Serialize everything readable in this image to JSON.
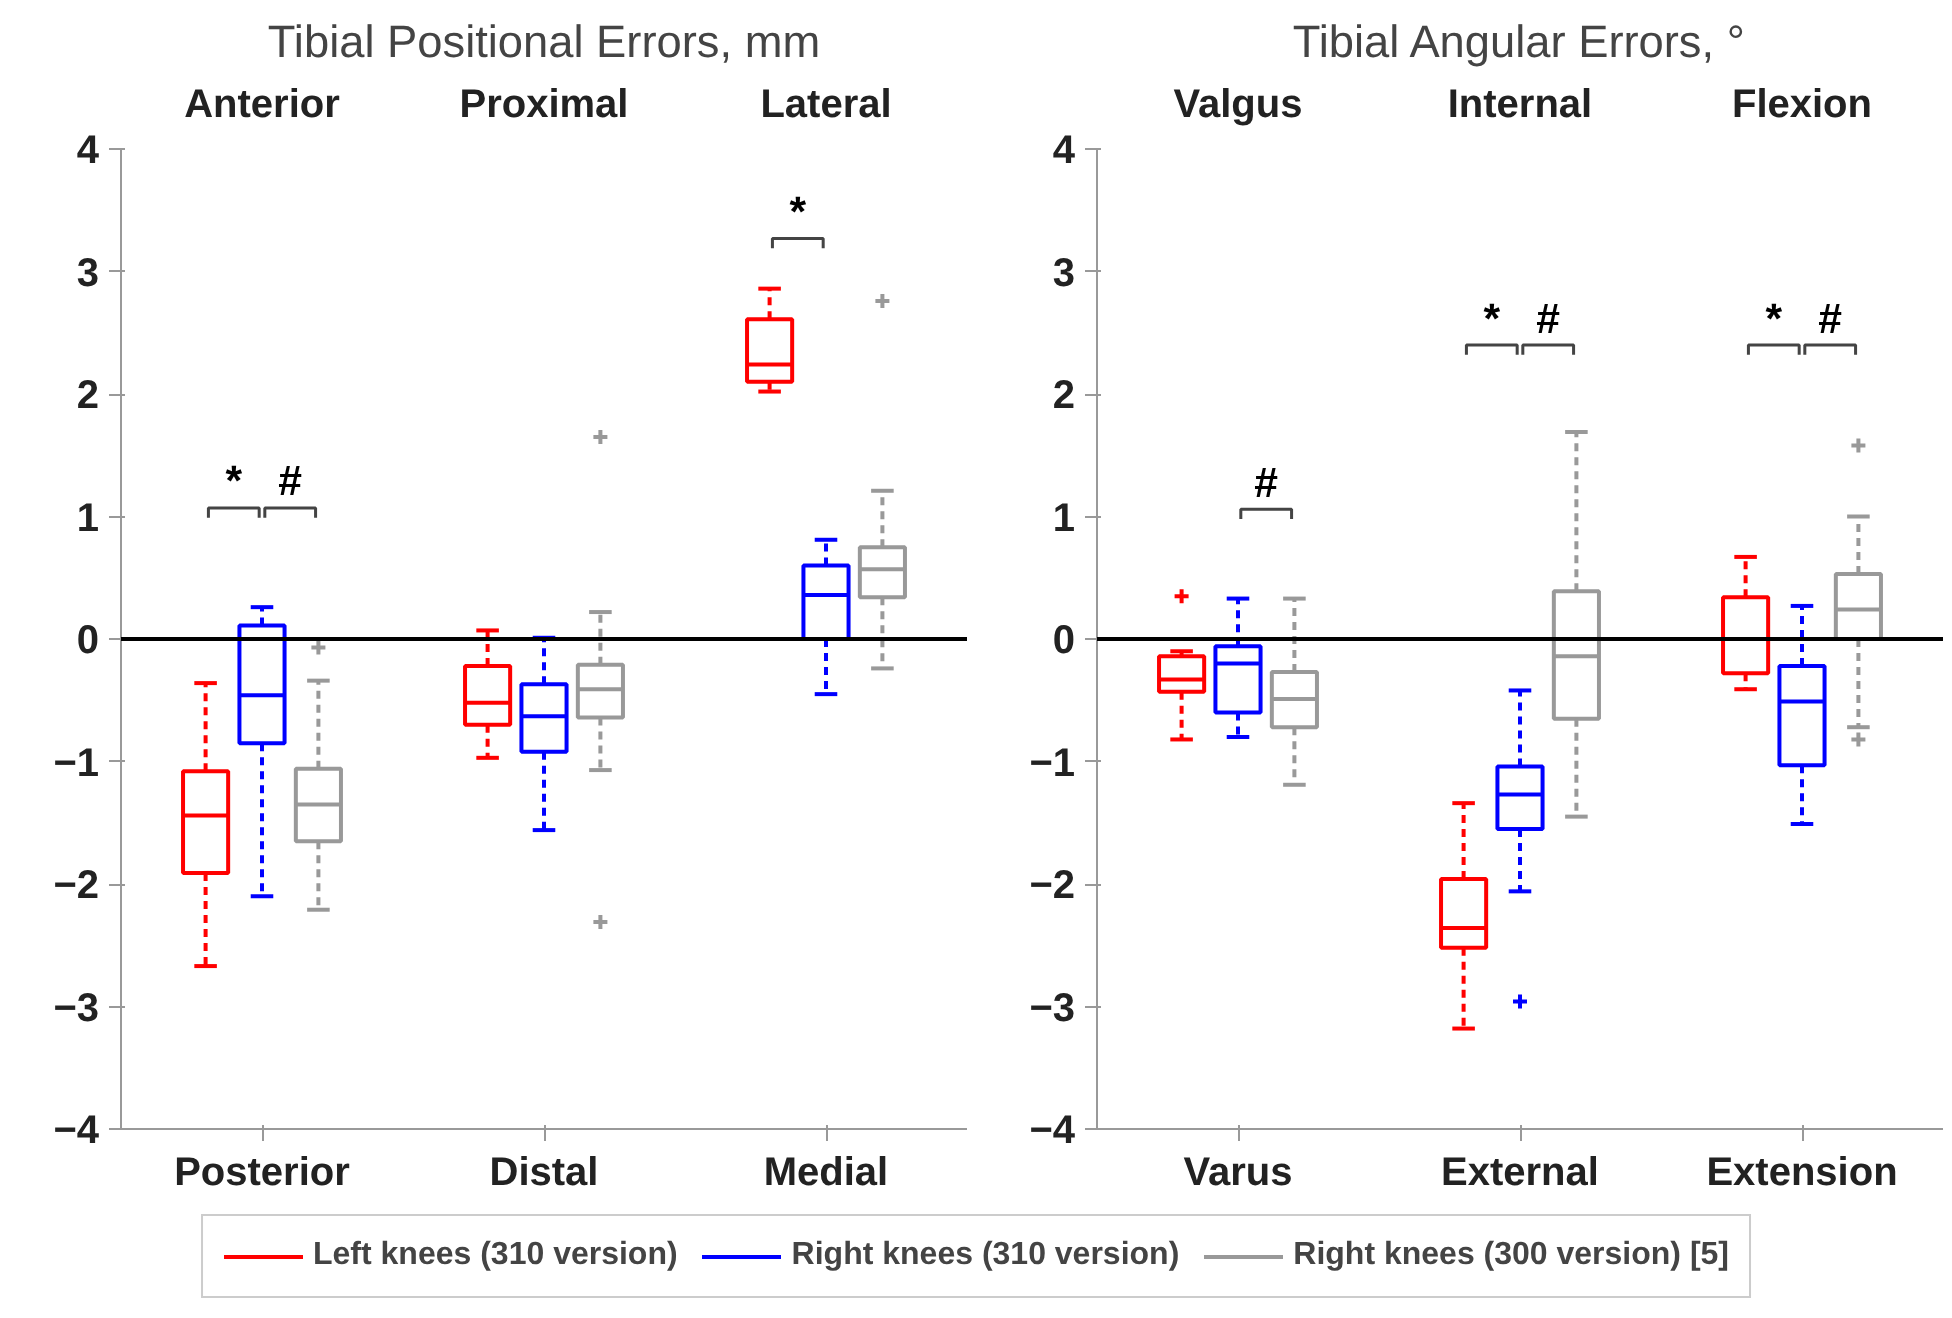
{
  "chart_data": [
    {
      "type": "box",
      "title": "Tibial Positional Errors, mm",
      "categories": [
        "Posterior",
        "Distal",
        "Medial"
      ],
      "ylim": [
        -4,
        4
      ],
      "yticks": [
        -4,
        -3,
        -2,
        -1,
        0,
        1,
        2,
        3,
        4
      ],
      "grid": false,
      "marker": "cross",
      "line_style": "dashed",
      "ref_lines": [
        {
          "axis": "y",
          "value": 0,
          "color": "#000000"
        }
      ],
      "annotations": [
        "Anterior",
        "Proximal",
        "Lateral",
        "*",
        "#",
        "*"
      ],
      "series": [
        {
          "color": "#ff0000",
          "boxes": [
            {
              "low": -2.67,
              "q1": -1.91,
              "median": -1.44,
              "q3": -1.08,
              "high": -0.36
            },
            {
              "low": -0.97,
              "q1": -0.7,
              "median": -0.52,
              "q3": -0.22,
              "high": 0.07
            },
            {
              "low": 2.02,
              "q1": 2.1,
              "median": 2.24,
              "q3": 2.61,
              "high": 2.86
            }
          ]
        },
        {
          "color": "#0000ff",
          "boxes": [
            {
              "low": -2.1,
              "q1": -0.85,
              "median": -0.46,
              "q3": 0.11,
              "high": 0.26
            },
            {
              "low": -1.56,
              "q1": -0.92,
              "median": -0.63,
              "q3": -0.37,
              "high": 0.01
            },
            {
              "low": -0.45,
              "q1": 0.0,
              "median": 0.36,
              "q3": 0.6,
              "high": 0.81
            }
          ]
        },
        {
          "color": "#999999",
          "boxes": [
            {
              "low": -2.21,
              "q1": -1.65,
              "median": -1.35,
              "q3": -1.06,
              "high": -0.34,
              "outliers": [
                -0.07
              ]
            },
            {
              "low": -1.07,
              "q1": -0.64,
              "median": -0.41,
              "q3": -0.21,
              "high": 0.22,
              "outliers": [
                1.65,
                -2.31
              ]
            },
            {
              "low": -0.24,
              "q1": 0.34,
              "median": 0.57,
              "q3": 0.75,
              "high": 1.21,
              "outliers": [
                2.76
              ]
            }
          ]
        }
      ]
    },
    {
      "type": "box",
      "title": "Tibial Angular Errors, °",
      "categories": [
        "Varus",
        "External",
        "Extension"
      ],
      "ylim": [
        -4,
        4
      ],
      "yticks": [
        -4,
        -3,
        -2,
        -1,
        0,
        1,
        2,
        3,
        4
      ],
      "grid": false,
      "marker": "cross",
      "line_style": "dashed",
      "legend": "bottom",
      "ref_lines": [
        {
          "axis": "y",
          "value": 0,
          "color": "#000000"
        }
      ],
      "annotations": [
        "Valgus",
        "Internal",
        "Flexion",
        "#",
        "*",
        "#",
        "*",
        "#"
      ],
      "series": [
        {
          "name": "Left knees (310 version)",
          "color": "#ff0000",
          "boxes": [
            {
              "low": -0.82,
              "q1": -0.43,
              "median": -0.33,
              "q3": -0.14,
              "high": -0.1,
              "outliers": [
                0.35
              ]
            },
            {
              "low": -3.18,
              "q1": -2.52,
              "median": -2.36,
              "q3": -1.96,
              "high": -1.34
            },
            {
              "low": -0.41,
              "q1": -0.28,
              "median": 0.0,
              "q3": 0.34,
              "high": 0.67
            }
          ]
        },
        {
          "name": "Right knees (310 version)",
          "color": "#0000ff",
          "boxes": [
            {
              "low": -0.8,
              "q1": -0.6,
              "median": -0.2,
              "q3": -0.06,
              "high": 0.33
            },
            {
              "low": -2.06,
              "q1": -1.55,
              "median": -1.27,
              "q3": -1.04,
              "high": -0.42,
              "outliers": [
                -2.96
              ]
            },
            {
              "low": -1.51,
              "q1": -1.03,
              "median": -0.51,
              "q3": -0.22,
              "high": 0.27
            }
          ]
        },
        {
          "name": "Right knees (300 version) [5]",
          "color": "#999999",
          "boxes": [
            {
              "low": -1.19,
              "q1": -0.72,
              "median": -0.49,
              "q3": -0.27,
              "high": 0.33
            },
            {
              "low": -1.45,
              "q1": -0.65,
              "median": -0.14,
              "q3": 0.39,
              "high": 1.69
            },
            {
              "low": -0.72,
              "q1": 0.0,
              "median": 0.24,
              "q3": 0.53,
              "high": 1.0,
              "outliers": [
                1.58,
                -0.82
              ]
            }
          ]
        }
      ]
    }
  ]
}
